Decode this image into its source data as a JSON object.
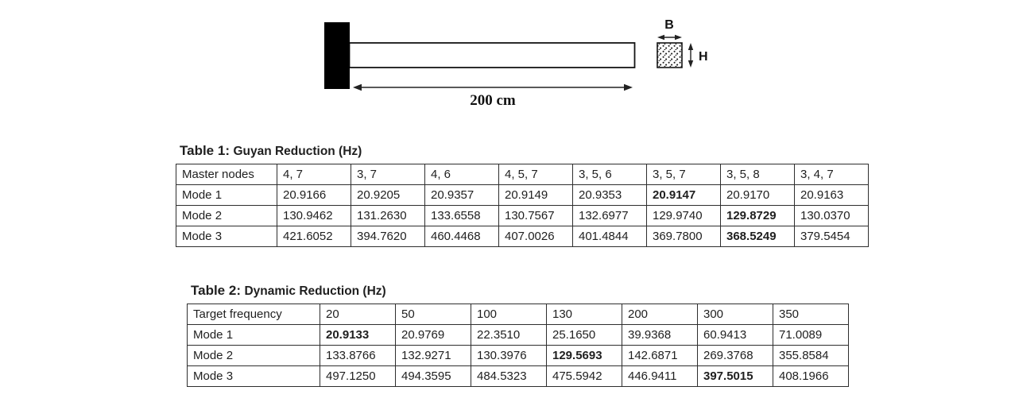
{
  "diagram": {
    "length_label": "200 cm",
    "width_label": "B",
    "height_label": "H"
  },
  "table1": {
    "title_prefix": "Table 1:",
    "title": "Guyan Reduction (Hz)",
    "header": [
      "Master nodes",
      "4, 7",
      "3, 7",
      "4, 6",
      "4, 5, 7",
      "3, 5, 6",
      "3, 5, 7",
      "3, 5, 8",
      "3, 4, 7"
    ],
    "rows": [
      {
        "label": "Mode 1",
        "values": [
          "20.9166",
          "20.9205",
          "20.9357",
          "20.9149",
          "20.9353",
          "20.9147",
          "20.9170",
          "20.9163"
        ],
        "bold_index": 5
      },
      {
        "label": "Mode 2",
        "values": [
          "130.9462",
          "131.2630",
          "133.6558",
          "130.7567",
          "132.6977",
          "129.9740",
          "129.8729",
          "130.0370"
        ],
        "bold_index": 6
      },
      {
        "label": "Mode 3",
        "values": [
          "421.6052",
          "394.7620",
          "460.4468",
          "407.0026",
          "401.4844",
          "369.7800",
          "368.5249",
          "379.5454"
        ],
        "bold_index": 6
      }
    ]
  },
  "table2": {
    "title_prefix": "Table 2:",
    "title": "Dynamic Reduction (Hz)",
    "header": [
      "Target frequency",
      "20",
      "50",
      "100",
      "130",
      "200",
      "300",
      "350"
    ],
    "rows": [
      {
        "label": "Mode 1",
        "values": [
          "20.9133",
          "20.9769",
          "22.3510",
          "25.1650",
          "39.9368",
          "60.9413",
          "71.0089"
        ],
        "bold_index": 0
      },
      {
        "label": "Mode 2",
        "values": [
          "133.8766",
          "132.9271",
          "130.3976",
          "129.5693",
          "142.6871",
          "269.3768",
          "355.8584"
        ],
        "bold_index": 3
      },
      {
        "label": "Mode 3",
        "values": [
          "497.1250",
          "494.3595",
          "484.5323",
          "475.5942",
          "446.9411",
          "397.5015",
          "408.1966"
        ],
        "bold_index": 5
      }
    ]
  }
}
